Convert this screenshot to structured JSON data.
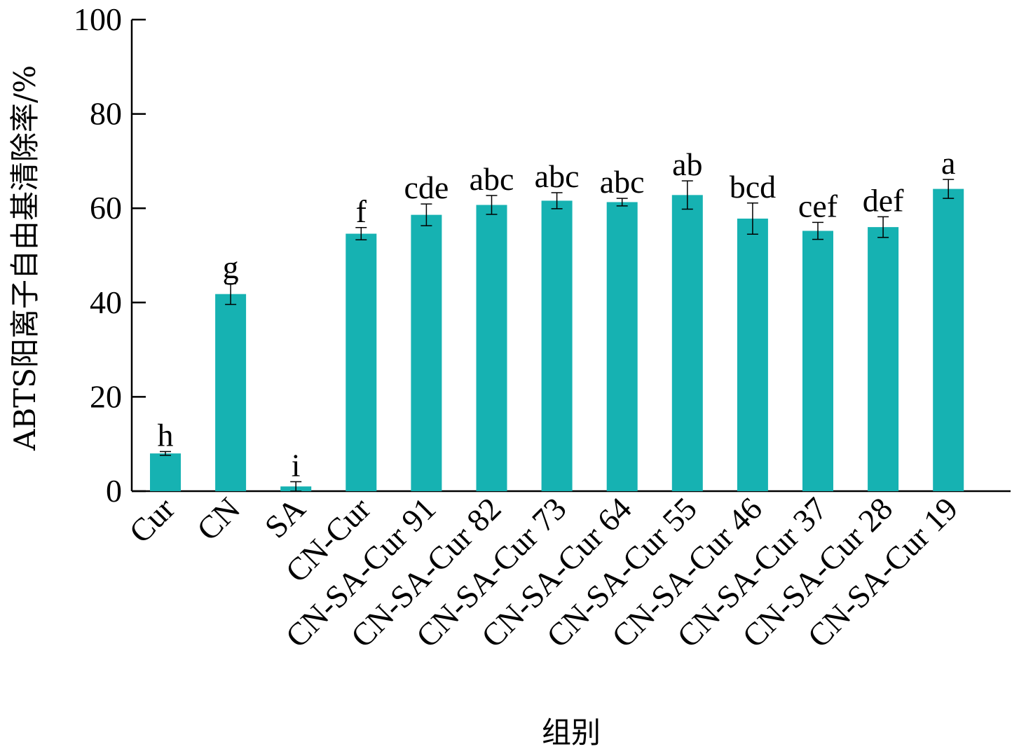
{
  "chart_data": {
    "type": "bar",
    "xlabel": "组别",
    "ylabel": "ABTS阳离子自由基清除率/%",
    "ylim": [
      0,
      100
    ],
    "yticks": [
      0,
      20,
      40,
      60,
      80,
      100
    ],
    "ytick_labels": [
      "0",
      "20",
      "40",
      "60",
      "80",
      "100"
    ],
    "bar_color": "#16b2b2",
    "categories": [
      "Cur",
      "CN",
      "SA",
      "CN-Cur",
      "CN-SA-Cur 91",
      "CN-SA-Cur 82",
      "CN-SA-Cur 73",
      "CN-SA-Cur 64",
      "CN-SA-Cur 55",
      "CN-SA-Cur 46",
      "CN-SA-Cur 37",
      "CN-SA-Cur 28",
      "CN-SA-Cur 19"
    ],
    "values": [
      8.0,
      41.8,
      1.0,
      54.6,
      58.6,
      60.7,
      61.6,
      61.3,
      62.8,
      57.8,
      55.2,
      56.0,
      64.1
    ],
    "errors": [
      0.4,
      2.2,
      1.0,
      1.3,
      2.3,
      2.0,
      1.7,
      0.8,
      3.0,
      3.3,
      1.8,
      2.2,
      2.0
    ],
    "significance_letters": [
      "h",
      "g",
      "i",
      "f",
      "cde",
      "abc",
      "abc",
      "abc",
      "ab",
      "bcd",
      "cef",
      "def",
      "a"
    ],
    "grid": false,
    "legend": null
  }
}
